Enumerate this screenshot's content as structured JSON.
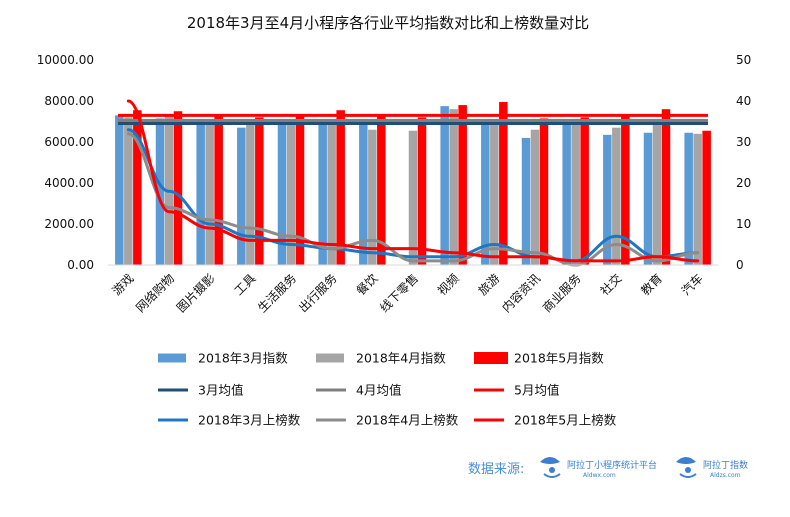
{
  "chart_data": {
    "type": "bar",
    "title": "2018年3月至4月小程序各行业平均指数对比和上榜数量对比",
    "categories": [
      "游戏",
      "网络购物",
      "图片摄影",
      "工具",
      "生活服务",
      "出行服务",
      "餐饮",
      "线下零售",
      "视频",
      "旅游",
      "内容资讯",
      "商业服务",
      "社交",
      "教育",
      "汽车"
    ],
    "y_left": {
      "ticks": [
        "0.00",
        "2000.00",
        "4000.00",
        "6000.00",
        "8000.00",
        "10000.00"
      ],
      "range": [
        0,
        10000
      ]
    },
    "y_right": {
      "ticks": [
        "0",
        "10",
        "20",
        "30",
        "40",
        "50"
      ],
      "range": [
        0,
        50
      ]
    },
    "bar_series": [
      {
        "name": "2018年3月指数",
        "color": "#5b9bd5",
        "values": [
          7300,
          7150,
          6900,
          6700,
          7000,
          7100,
          7100,
          0,
          7750,
          7050,
          6200,
          6950,
          6350,
          6450,
          6450
        ]
      },
      {
        "name": "2018年4月指数",
        "color": "#a5a5a5",
        "values": [
          7200,
          7350,
          6950,
          6900,
          6950,
          7050,
          6600,
          6550,
          7600,
          7100,
          6600,
          6950,
          6700,
          6950,
          6400
        ]
      },
      {
        "name": "2018年5月指数",
        "color": "#ff0000",
        "values": [
          7550,
          7500,
          7300,
          7200,
          7300,
          7550,
          7350,
          7200,
          7800,
          7950,
          7150,
          7200,
          7250,
          7600,
          6550
        ]
      }
    ],
    "average_lines": [
      {
        "name": "3月均值",
        "color": "#1f4e79",
        "value": 6900
      },
      {
        "name": "4月均值",
        "color": "#7f7f7f",
        "value": 7050
      },
      {
        "name": "5月均值",
        "color": "#ff0000",
        "value": 7300
      }
    ],
    "line_series": [
      {
        "name": "2018年3月上榜数",
        "color": "#1f77c4",
        "axis": "right",
        "values": [
          33,
          18,
          10,
          7,
          5,
          4,
          3,
          2,
          2,
          5,
          2,
          1,
          7,
          2,
          3
        ]
      },
      {
        "name": "2018年4月上榜数",
        "color": "#8c8c8c",
        "axis": "right",
        "values": [
          32,
          14,
          11,
          9,
          7,
          4,
          6,
          1,
          1,
          4,
          3,
          0,
          5,
          1,
          3
        ]
      },
      {
        "name": "2018年5月上榜数",
        "color": "#ff0000",
        "axis": "right",
        "values": [
          40,
          13,
          9,
          6,
          6,
          5,
          4,
          4,
          3,
          2,
          2,
          1,
          1,
          2,
          1
        ]
      }
    ],
    "legend_position": "bottom",
    "grid": false
  },
  "source": {
    "label": "数据来源:",
    "brand1_name": "阿拉丁小程序统计平台",
    "brand1_url": "Aldwx.com",
    "brand2_name": "阿拉丁指数",
    "brand2_url": "Aldzs.com"
  }
}
